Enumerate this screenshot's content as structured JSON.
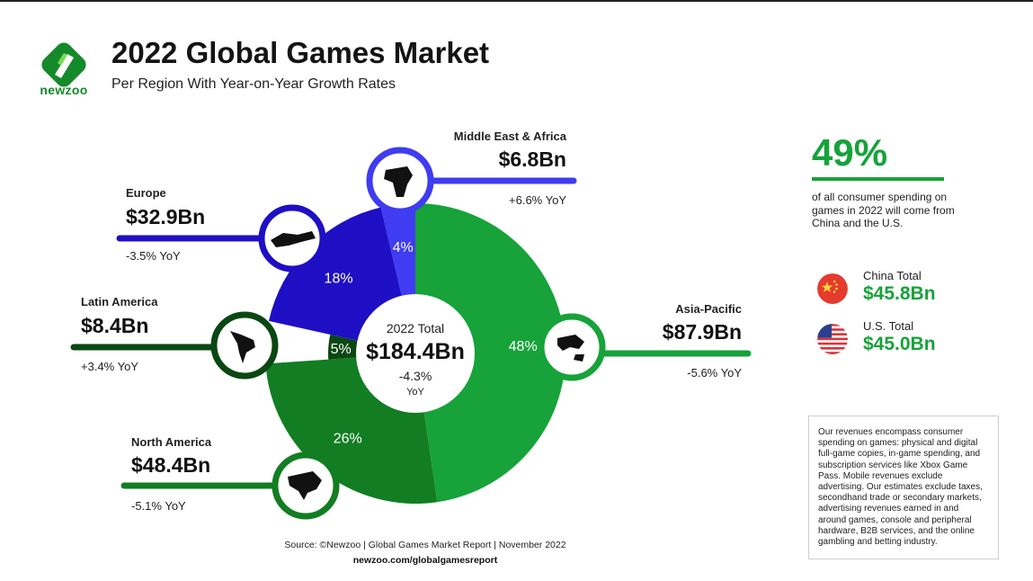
{
  "brand": {
    "name": "newzoo",
    "color": "#148a2a"
  },
  "header": {
    "title": "2022 Global Games Market",
    "subtitle": "Per Region With Year-on-Year Growth Rates"
  },
  "center": {
    "label": "2022 Total",
    "value": "$184.4Bn",
    "yoy": "-4.3%",
    "yoy_suffix": "YoY"
  },
  "regions": {
    "apac": {
      "name": "Asia-Pacific",
      "value": "$87.9Bn",
      "yoy": "-5.6% YoY",
      "share": "48%",
      "icon": "asia-pacific-map-icon"
    },
    "na": {
      "name": "North America",
      "value": "$48.4Bn",
      "yoy": "-5.1% YoY",
      "share": "26%",
      "icon": "north-america-map-icon"
    },
    "latam": {
      "name": "Latin America",
      "value": "$8.4Bn",
      "yoy": "+3.4% YoY",
      "share": "5%",
      "icon": "latin-america-map-icon"
    },
    "eu": {
      "name": "Europe",
      "value": "$32.9Bn",
      "yoy": "-3.5% YoY",
      "share": "18%",
      "icon": "europe-map-icon"
    },
    "mea": {
      "name": "Middle East & Africa",
      "value": "$6.8Bn",
      "yoy": "+6.6% YoY",
      "share": "4%",
      "icon": "africa-map-icon"
    }
  },
  "chart_data": {
    "type": "pie",
    "title": "2022 Global Games Market",
    "subtitle": "Per Region With Year-on-Year Growth Rates",
    "categories": [
      "Asia-Pacific",
      "North America",
      "Latin America",
      "Europe",
      "Middle East & Africa"
    ],
    "values": [
      87.9,
      48.4,
      8.4,
      32.9,
      6.8
    ],
    "shares_pct": [
      48,
      26,
      5,
      18,
      4
    ],
    "yoy_pct": [
      -5.6,
      -5.1,
      3.4,
      -3.5,
      6.6
    ],
    "total": 184.4,
    "total_yoy_pct": -4.3,
    "colors": [
      "#17a23a",
      "#127d22",
      "#0b4712",
      "#1f0fc4",
      "#3f3cf2"
    ]
  },
  "sidebar": {
    "headline_pct": "49%",
    "headline_desc": "of all consumer spending on games in 2022 will come from China and the U.S.",
    "china": {
      "label": "China Total",
      "value": "$45.8Bn",
      "icon": "china-flag-icon"
    },
    "us": {
      "label": "U.S. Total",
      "value": "$45.0Bn",
      "icon": "us-flag-icon"
    },
    "accent": "#17a23a"
  },
  "note": "Our revenues encompass consumer spending on games: physical and digital full-game copies, in-game spending, and subscription services like Xbox Game Pass. Mobile revenues exclude advertising. Our estimates exclude taxes, secondhand trade or secondary markets, advertising revenues earned in and around games, console and peripheral hardware, B2B services, and the online gambling and betting industry.",
  "footer": {
    "source": "Source: ©Newzoo | Global Games Market Report | November 2022",
    "url": "newzoo.com/globalgamesreport"
  }
}
